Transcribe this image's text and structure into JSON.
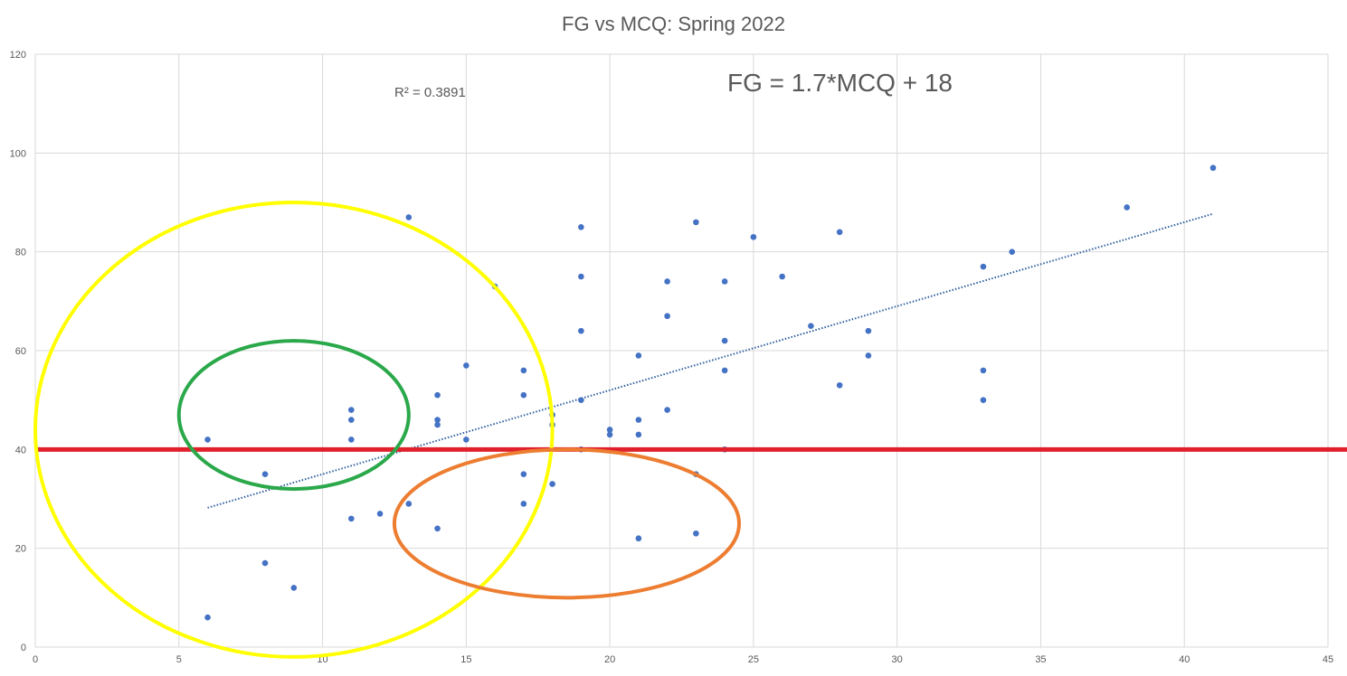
{
  "chart_data": {
    "type": "scatter",
    "title": "FG vs MCQ: Spring 2022",
    "xlabel": "",
    "ylabel": "",
    "xlim": [
      0,
      45
    ],
    "ylim": [
      0,
      120
    ],
    "x_ticks": [
      0,
      5,
      10,
      15,
      20,
      25,
      30,
      35,
      40,
      45
    ],
    "y_ticks": [
      0,
      20,
      40,
      60,
      80,
      100,
      120
    ],
    "grid": true,
    "legend": "none",
    "points": [
      [
        6,
        6
      ],
      [
        6,
        42
      ],
      [
        8,
        35
      ],
      [
        8,
        17
      ],
      [
        9,
        12
      ],
      [
        11,
        48
      ],
      [
        11,
        46
      ],
      [
        11,
        42
      ],
      [
        11,
        26
      ],
      [
        12,
        27
      ],
      [
        13,
        87
      ],
      [
        13,
        29
      ],
      [
        14,
        51
      ],
      [
        14,
        46
      ],
      [
        14,
        45
      ],
      [
        14,
        24
      ],
      [
        15,
        57
      ],
      [
        15,
        42
      ],
      [
        16,
        73
      ],
      [
        17,
        56
      ],
      [
        17,
        51
      ],
      [
        17,
        35
      ],
      [
        17,
        29
      ],
      [
        18,
        47
      ],
      [
        18,
        45
      ],
      [
        18,
        33
      ],
      [
        19,
        85
      ],
      [
        19,
        75
      ],
      [
        19,
        64
      ],
      [
        19,
        50
      ],
      [
        19,
        40
      ],
      [
        20,
        44
      ],
      [
        20,
        43
      ],
      [
        21,
        59
      ],
      [
        21,
        46
      ],
      [
        21,
        43
      ],
      [
        21,
        22
      ],
      [
        22,
        74
      ],
      [
        22,
        67
      ],
      [
        22,
        48
      ],
      [
        23,
        86
      ],
      [
        23,
        35
      ],
      [
        23,
        23
      ],
      [
        24,
        74
      ],
      [
        24,
        62
      ],
      [
        24,
        56
      ],
      [
        24,
        40
      ],
      [
        25,
        83
      ],
      [
        26,
        75
      ],
      [
        27,
        65
      ],
      [
        28,
        84
      ],
      [
        28,
        53
      ],
      [
        29,
        64
      ],
      [
        29,
        59
      ],
      [
        33,
        77
      ],
      [
        33,
        56
      ],
      [
        33,
        50
      ],
      [
        34,
        80
      ],
      [
        38,
        89
      ],
      [
        41,
        97
      ]
    ],
    "trendline": {
      "slope": 1.7,
      "intercept": 18,
      "x_start": 6,
      "x_end": 41
    },
    "r_squared_label": "R² = 0.3891",
    "equation_label": "FG = 1.7*MCQ + 18",
    "threshold_line_y": 40,
    "annotations": [
      {
        "shape": "ellipse",
        "color": "#ffff00",
        "cx": 9,
        "cy": 44,
        "rx": 9,
        "ry": 46
      },
      {
        "shape": "ellipse",
        "color": "#2aa84a",
        "cx": 9,
        "cy": 47,
        "rx": 4,
        "ry": 15
      },
      {
        "shape": "ellipse",
        "color": "#ed7d31",
        "cx": 18.5,
        "cy": 25,
        "rx": 6,
        "ry": 15
      }
    ],
    "colors": {
      "points": "#4472c4",
      "trendline": "#2e5f9e",
      "threshold": "#e0202b",
      "grid": "#d9d9d9",
      "text": "#595959"
    }
  }
}
